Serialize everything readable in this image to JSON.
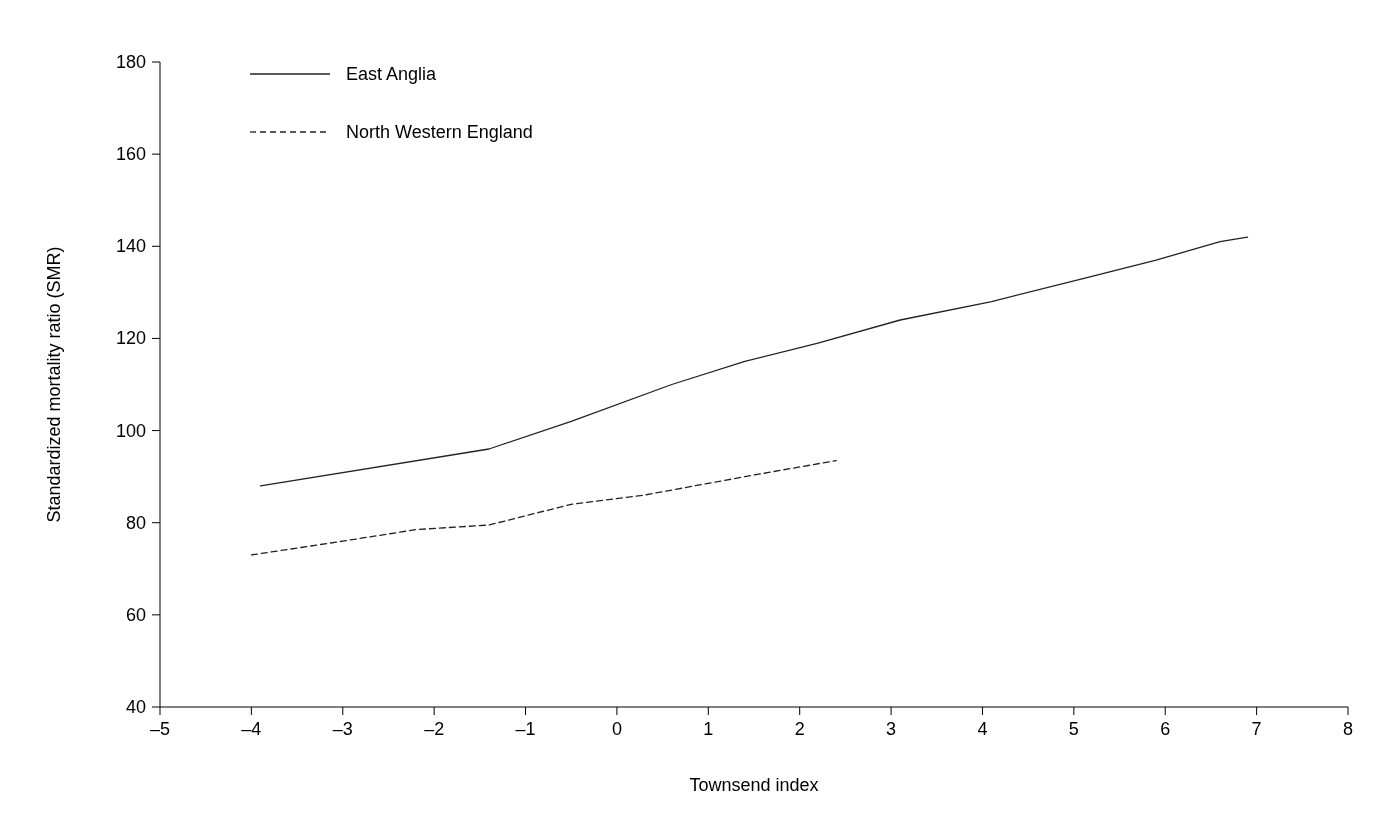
{
  "chart_data": {
    "type": "line",
    "xlabel": "Townsend index",
    "ylabel": "Standardized mortality ratio (SMR)",
    "xlim": [
      -5,
      8
    ],
    "xticks": [
      {
        "value": -5,
        "label": "–5"
      },
      {
        "value": -4,
        "label": "–4"
      },
      {
        "value": -3,
        "label": "–3"
      },
      {
        "value": -2,
        "label": "–2"
      },
      {
        "value": -1,
        "label": "–1"
      },
      0,
      1,
      2,
      3,
      4,
      5,
      6,
      7,
      8
    ],
    "ylim": [
      40,
      180
    ],
    "yticks": [
      40,
      60,
      80,
      100,
      120,
      140,
      160,
      180
    ],
    "legend": "top left",
    "marker": "none",
    "grid": false,
    "series": [
      {
        "name": "East Anglia",
        "color": "#222222",
        "line_style": "solid",
        "x": [
          -3.9,
          -1.4,
          -0.5,
          0.6,
          1.4,
          2.2,
          3.1,
          4.1,
          5.1,
          5.9,
          6.6,
          6.9
        ],
        "values": [
          88,
          96,
          102,
          110,
          115,
          119,
          124,
          128,
          133,
          137,
          141,
          142
        ]
      },
      {
        "name": "North Western England",
        "color": "#222222",
        "line_style": "dashed",
        "x": [
          -4,
          -3,
          -2.2,
          -1.4,
          -0.5,
          0.3,
          1.4,
          2.4
        ],
        "values": [
          73,
          76,
          78.5,
          79.5,
          84,
          86,
          90,
          93.5
        ]
      }
    ]
  }
}
